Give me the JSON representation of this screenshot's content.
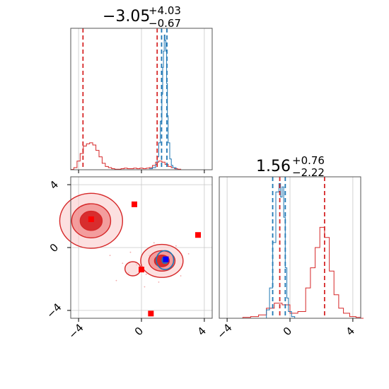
{
  "chart_data": [
    {
      "type": "area",
      "panel": "top-left marginal histogram (parameter 1)",
      "title_value": "−3.05",
      "title_sup": "+4.03",
      "title_sub": "−0.67",
      "xlim": [
        -4.5,
        4.5
      ],
      "xticks": [
        -4,
        0,
        4
      ],
      "grid": true,
      "series": [
        {
          "color": "#d62728",
          "x": [
            -4.5,
            -4.3,
            -4.1,
            -3.9,
            -3.7,
            -3.5,
            -3.3,
            -3.1,
            -2.9,
            -2.7,
            -2.5,
            -2.3,
            -2.1,
            -1.9,
            -1.7,
            -1.5,
            -1.3,
            -1.1,
            -0.9,
            -0.7,
            -0.5,
            -0.3,
            -0.1,
            0.1,
            0.3,
            0.5,
            0.7,
            0.9,
            1.1,
            1.3,
            1.5,
            1.7,
            1.9,
            2.1,
            2.3,
            2.5
          ],
          "values": [
            0.3,
            2,
            8,
            15,
            22,
            24,
            25,
            23,
            18,
            12,
            6,
            3,
            2,
            1,
            0.5,
            0.5,
            1,
            1.5,
            1,
            1,
            1.5,
            1,
            1.5,
            1,
            1.5,
            2,
            4,
            7,
            8,
            7,
            5,
            3,
            2,
            1,
            0.5,
            0
          ]
        },
        {
          "color": "#1f77b4",
          "x": [
            0.5,
            0.7,
            0.9,
            1.0,
            1.1,
            1.2,
            1.3,
            1.35,
            1.4,
            1.45,
            1.5,
            1.55,
            1.6,
            1.65,
            1.7,
            1.8,
            1.9,
            2.0,
            2.2
          ],
          "values": [
            1,
            2,
            5,
            12,
            25,
            45,
            70,
            95,
            110,
            125,
            120,
            110,
            80,
            50,
            25,
            10,
            4,
            2,
            0
          ]
        }
      ],
      "quantile_lines": [
        {
          "color": "#d62728",
          "x": [
            -3.72,
            1.0
          ]
        },
        {
          "color": "#1f77b4",
          "x": [
            1.28,
            1.62
          ]
        }
      ]
    },
    {
      "type": "scatter",
      "panel": "bottom-left 2D contour",
      "xlim": [
        -4.5,
        4.5
      ],
      "ylim": [
        -4.5,
        4.5
      ],
      "xticks": [
        -4,
        0,
        4
      ],
      "yticks": [
        4,
        0,
        -4
      ],
      "xtick_labels": [
        "−4",
        "0",
        "4"
      ],
      "ytick_labels": [
        "4",
        "0",
        "−4"
      ],
      "grid": true,
      "red_points": [
        {
          "x": -3.2,
          "y": 1.8
        },
        {
          "x": -0.45,
          "y": 2.75
        },
        {
          "x": 3.6,
          "y": 0.8
        },
        {
          "x": 0.0,
          "y": -1.4
        },
        {
          "x": 0.6,
          "y": -4.2
        },
        {
          "x": 1.55,
          "y": -0.75
        }
      ],
      "blue_points": [
        {
          "x": 1.55,
          "y": -0.75
        }
      ],
      "contours": [
        {
          "color": "#d62728",
          "center": [
            -3.2,
            1.7
          ],
          "levels": [
            "inner",
            "middle",
            "outer"
          ]
        },
        {
          "color": "#d62728",
          "center": [
            1.3,
            -0.85
          ],
          "levels": [
            "inner",
            "middle",
            "outer"
          ]
        },
        {
          "color": "#d62728",
          "center": [
            -0.55,
            -1.35
          ],
          "levels": [
            "outer"
          ]
        },
        {
          "color": "#1f77b4",
          "center": [
            1.5,
            -0.8
          ],
          "levels": [
            "inner",
            "outer"
          ]
        }
      ]
    },
    {
      "type": "area",
      "panel": "bottom-right marginal histogram (parameter 2)",
      "title_value": "1.56",
      "title_sup": "+0.76",
      "title_sub": "−2.22",
      "xlim": [
        -4.5,
        4.5
      ],
      "xticks": [
        -4,
        0,
        4
      ],
      "xtick_labels": [
        "−4",
        "0",
        "4"
      ],
      "grid": true,
      "series": [
        {
          "color": "#d62728",
          "x": [
            -4.5,
            -3.5,
            -3.0,
            -2.5,
            -2.0,
            -1.5,
            -1.0,
            -0.5,
            0.0,
            0.5,
            1.0,
            1.3,
            1.6,
            1.9,
            2.2,
            2.5,
            2.8,
            3.1,
            3.4,
            3.8,
            4.2,
            4.5
          ],
          "values": [
            0,
            0,
            0.5,
            1,
            2,
            6,
            9,
            8,
            3,
            4,
            18,
            30,
            42,
            54,
            48,
            28,
            14,
            6,
            3,
            1,
            0.5,
            0
          ]
        },
        {
          "color": "#1f77b4",
          "x": [
            -1.8,
            -1.5,
            -1.3,
            -1.1,
            -0.9,
            -0.7,
            -0.6,
            -0.5,
            -0.4,
            -0.3,
            -0.2,
            -0.1,
            0.1,
            0.3
          ],
          "values": [
            0,
            5,
            18,
            45,
            75,
            80,
            72,
            78,
            60,
            30,
            12,
            4,
            1,
            0
          ]
        }
      ],
      "quantile_lines": [
        {
          "color": "#d62728",
          "x": [
            -0.65,
            2.2
          ]
        },
        {
          "color": "#1f77b4",
          "x": [
            -1.1,
            -0.3
          ]
        }
      ]
    }
  ]
}
